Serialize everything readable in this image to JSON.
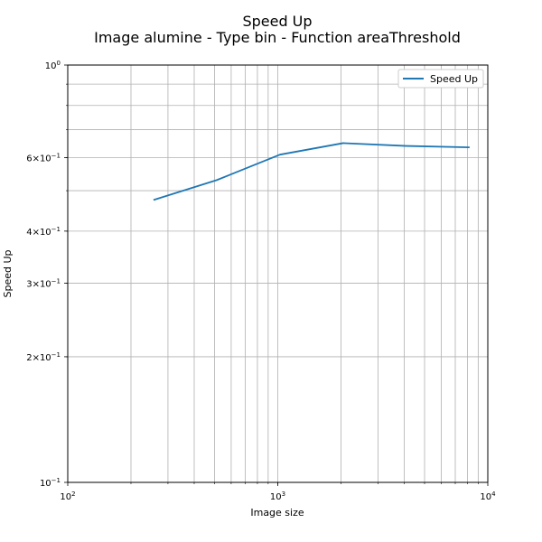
{
  "chart_data": {
    "type": "line",
    "title": "Speed Up",
    "subtitle": "Image alumine - Type bin - Function areaThreshold",
    "xlabel": "Image size",
    "ylabel": "Speed Up",
    "xscale": "log",
    "yscale": "log",
    "xlim": [
      100,
      10000
    ],
    "ylim": [
      0.1,
      1
    ],
    "grid": true,
    "legend_position": "top-right",
    "x_ticks": [
      {
        "base": "10",
        "exp": "2",
        "value": 100
      },
      {
        "base": "10",
        "exp": "3",
        "value": 1000
      },
      {
        "base": "10",
        "exp": "4",
        "value": 10000
      }
    ],
    "y_ticks": [
      {
        "mant": "",
        "base": "10",
        "exp": "−1",
        "value": 0.1
      },
      {
        "mant": "2×",
        "base": "10",
        "exp": "−1",
        "value": 0.2
      },
      {
        "mant": "3×",
        "base": "10",
        "exp": "−1",
        "value": 0.3
      },
      {
        "mant": "4×",
        "base": "10",
        "exp": "−1",
        "value": 0.4
      },
      {
        "mant": "6×",
        "base": "10",
        "exp": "−1",
        "value": 0.6
      },
      {
        "mant": "",
        "base": "10",
        "exp": "0",
        "value": 1
      }
    ],
    "series": [
      {
        "name": "Speed Up",
        "color": "#1f77b4",
        "x": [
          256,
          512,
          1024,
          2048,
          4096,
          8192
        ],
        "y": [
          0.475,
          0.53,
          0.61,
          0.65,
          0.64,
          0.635
        ]
      }
    ]
  }
}
